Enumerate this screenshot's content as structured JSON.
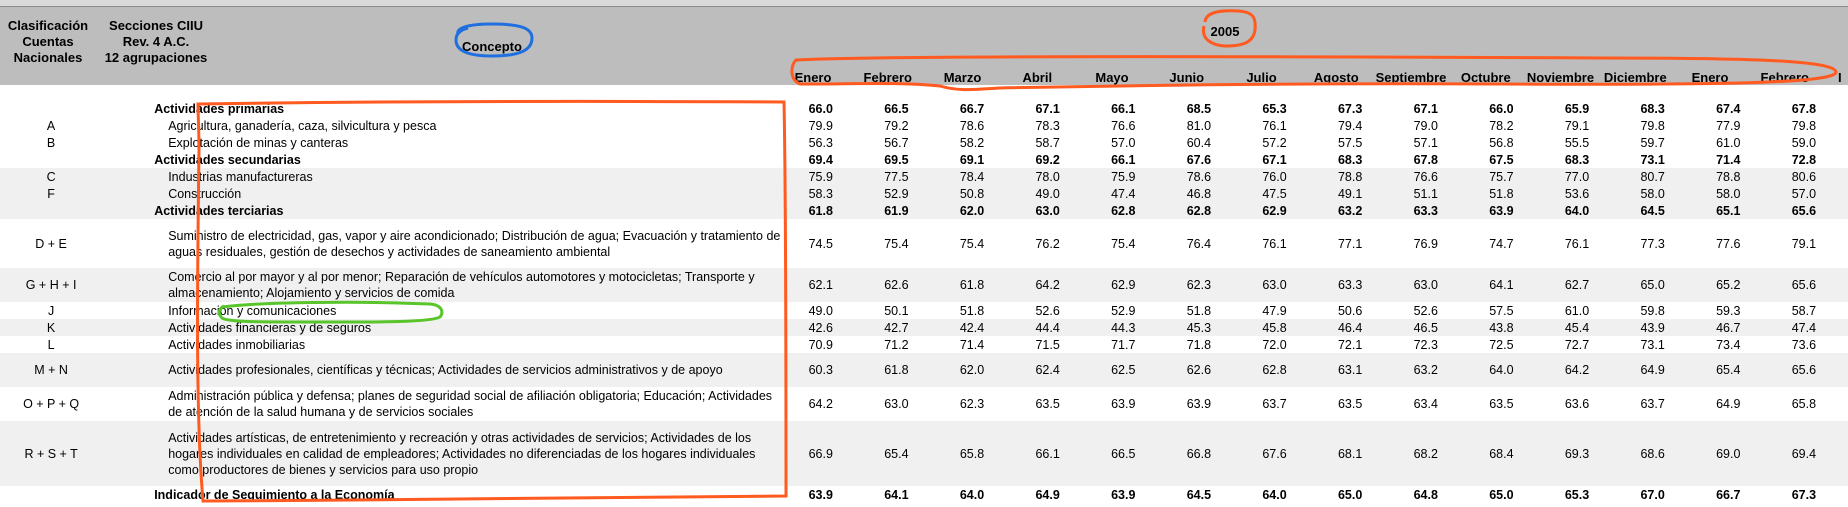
{
  "header": {
    "col1_line1": "Clasificación",
    "col1_line2": "Cuentas",
    "col1_line3": "Nacionales",
    "col2_line1": "Secciones CIIU",
    "col2_line2": "Rev. 4 A.C.",
    "col2_line3": "12 agrupaciones",
    "concept": "Concepto",
    "year": "2005",
    "months": [
      "Enero",
      "Febrero",
      "Marzo",
      "Abril",
      "Mayo",
      "Junio",
      "Julio",
      "Agosto",
      "Septiembre",
      "Octubre",
      "Noviembre",
      "Diciembre",
      "Enero",
      "Febrero"
    ],
    "extra_col": "I"
  },
  "rows": [
    {
      "code": "",
      "concept": "Actividades primarias",
      "section": true,
      "values": [
        "66.0",
        "66.5",
        "66.7",
        "67.1",
        "66.1",
        "68.5",
        "65.3",
        "67.3",
        "67.1",
        "66.0",
        "65.9",
        "68.3",
        "67.4",
        "67.8"
      ]
    },
    {
      "code": "A",
      "concept": "Agricultura, ganadería, caza, silvicultura y pesca",
      "section": false,
      "values": [
        "79.9",
        "79.2",
        "78.6",
        "78.3",
        "76.6",
        "81.0",
        "76.1",
        "79.4",
        "79.0",
        "78.2",
        "79.1",
        "79.8",
        "77.9",
        "79.8"
      ]
    },
    {
      "code": "B",
      "concept": "Explotación de minas y canteras",
      "section": false,
      "values": [
        "56.3",
        "56.7",
        "58.2",
        "58.7",
        "57.0",
        "60.4",
        "57.2",
        "57.5",
        "57.1",
        "56.8",
        "55.5",
        "59.7",
        "61.0",
        "59.0"
      ]
    },
    {
      "code": "",
      "concept": "Actividades secundarias",
      "section": true,
      "values": [
        "69.4",
        "69.5",
        "69.1",
        "69.2",
        "66.1",
        "67.6",
        "67.1",
        "68.3",
        "67.8",
        "67.5",
        "68.3",
        "73.1",
        "71.4",
        "72.8"
      ]
    },
    {
      "code": "C",
      "concept": "Industrias manufactureras",
      "section": false,
      "values": [
        "75.9",
        "77.5",
        "78.4",
        "78.0",
        "75.9",
        "78.6",
        "76.0",
        "78.8",
        "76.6",
        "75.7",
        "77.0",
        "80.7",
        "78.8",
        "80.6"
      ]
    },
    {
      "code": "F",
      "concept": "Construcción",
      "section": false,
      "values": [
        "58.3",
        "52.9",
        "50.8",
        "49.0",
        "47.4",
        "46.8",
        "47.5",
        "49.1",
        "51.1",
        "51.8",
        "53.6",
        "58.0",
        "58.0",
        "57.0"
      ]
    },
    {
      "code": "",
      "concept": "Actividades terciarias",
      "section": true,
      "values": [
        "61.8",
        "61.9",
        "62.0",
        "63.0",
        "62.8",
        "62.8",
        "62.9",
        "63.2",
        "63.3",
        "63.9",
        "64.0",
        "64.5",
        "65.1",
        "65.6"
      ]
    },
    {
      "code": "D + E",
      "concept": "Suministro de electricidad, gas, vapor y aire acondicionado; Distribución de agua; Evacuación y tratamiento de aguas residuales, gestión de desechos y actividades de saneamiento ambiental",
      "section": false,
      "values": [
        "74.5",
        "75.4",
        "75.4",
        "76.2",
        "75.4",
        "76.4",
        "76.1",
        "77.1",
        "76.9",
        "74.7",
        "76.1",
        "77.3",
        "77.6",
        "79.1"
      ]
    },
    {
      "code": "G + H + I",
      "concept": "Comercio al por mayor y al por menor; Reparación de vehículos automotores y motocicletas; Transporte y almacenamiento; Alojamiento y servicios de comida",
      "section": false,
      "values": [
        "62.1",
        "62.6",
        "61.8",
        "64.2",
        "62.9",
        "62.3",
        "63.0",
        "63.3",
        "63.0",
        "64.1",
        "62.7",
        "65.0",
        "65.2",
        "65.6"
      ]
    },
    {
      "code": "J",
      "concept": "Información y comunicaciones",
      "section": false,
      "values": [
        "49.0",
        "50.1",
        "51.8",
        "52.6",
        "52.9",
        "51.8",
        "47.9",
        "50.6",
        "52.6",
        "57.5",
        "61.0",
        "59.8",
        "59.3",
        "58.7"
      ]
    },
    {
      "code": "K",
      "concept": "Actividades financieras y de seguros",
      "section": false,
      "values": [
        "42.6",
        "42.7",
        "42.4",
        "44.4",
        "44.3",
        "45.3",
        "45.8",
        "46.4",
        "46.5",
        "43.8",
        "45.4",
        "43.9",
        "46.7",
        "47.4"
      ]
    },
    {
      "code": "L",
      "concept": "Actividades inmobiliarias",
      "section": false,
      "values": [
        "70.9",
        "71.2",
        "71.4",
        "71.5",
        "71.7",
        "71.8",
        "72.0",
        "72.1",
        "72.3",
        "72.5",
        "72.7",
        "73.1",
        "73.4",
        "73.6"
      ]
    },
    {
      "code": "M + N",
      "concept": "Actividades profesionales, científicas y técnicas; Actividades de servicios administrativos y de apoyo",
      "section": false,
      "values": [
        "60.3",
        "61.8",
        "62.0",
        "62.4",
        "62.5",
        "62.6",
        "62.8",
        "63.1",
        "63.2",
        "64.0",
        "64.2",
        "64.9",
        "65.4",
        "65.6"
      ]
    },
    {
      "code": "O + P + Q",
      "concept": "Administración pública y defensa; planes de seguridad social de afiliación obligatoria; Educación; Actividades de atención de la salud humana y de servicios sociales",
      "section": false,
      "values": [
        "64.2",
        "63.0",
        "62.3",
        "63.5",
        "63.9",
        "63.9",
        "63.7",
        "63.5",
        "63.4",
        "63.5",
        "63.6",
        "63.7",
        "64.9",
        "65.8"
      ]
    },
    {
      "code": "R + S + T",
      "concept": "Actividades artísticas, de entretenimiento y recreación y otras actividades de servicios; Actividades de los hogares individuales en calidad de empleadores; Actividades no diferenciadas de los hogares individuales como productores de bienes y servicios para uso propio",
      "section": false,
      "values": [
        "66.9",
        "65.4",
        "65.8",
        "66.1",
        "66.5",
        "66.8",
        "67.6",
        "68.1",
        "68.2",
        "68.4",
        "69.3",
        "68.6",
        "69.0",
        "69.4"
      ]
    },
    {
      "code": "",
      "concept": "Indicador de Seguimiento a la Economía",
      "section": true,
      "values": [
        "63.9",
        "64.1",
        "64.0",
        "64.9",
        "63.9",
        "64.5",
        "64.0",
        "65.0",
        "64.8",
        "65.0",
        "65.3",
        "67.0",
        "66.7",
        "67.3"
      ]
    }
  ],
  "colors": {
    "header_bg": "#bdbdbd",
    "annotation_orange": "#ff5a1f",
    "annotation_blue": "#1f6fe0",
    "annotation_green": "#59c52a"
  }
}
